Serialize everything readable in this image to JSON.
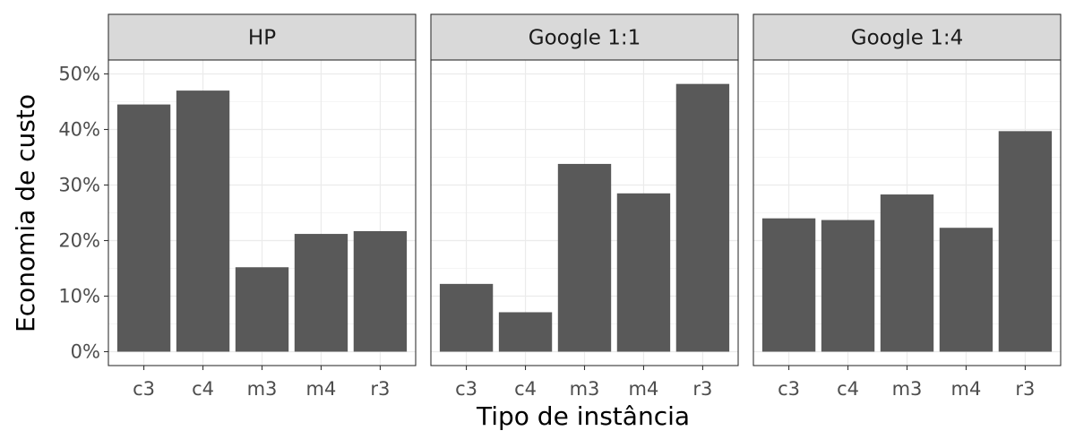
{
  "chart_data": {
    "type": "bar",
    "categories": [
      "c3",
      "c4",
      "m3",
      "m4",
      "r3"
    ],
    "panels": [
      {
        "name": "HP",
        "values": [
          44.5,
          47.0,
          15.2,
          21.2,
          21.7
        ]
      },
      {
        "name": "Google 1:1",
        "values": [
          12.2,
          7.1,
          33.8,
          28.5,
          48.2
        ]
      },
      {
        "name": "Google 1:4",
        "values": [
          24.0,
          23.7,
          28.3,
          22.3,
          39.7
        ]
      }
    ],
    "xlabel": "Tipo de instância",
    "ylabel": "Economia de custo",
    "ylim": [
      -2.5,
      52.5
    ],
    "yticks": [
      0,
      10,
      20,
      30,
      40,
      50
    ],
    "ytick_labels": [
      "0%",
      "10%",
      "20%",
      "30%",
      "40%",
      "50%"
    ],
    "grid": true,
    "bar_color": "#595959",
    "strip_fill": "#d9d9d9",
    "grid_color": "#ebebeb",
    "panel_border": "#333333"
  }
}
